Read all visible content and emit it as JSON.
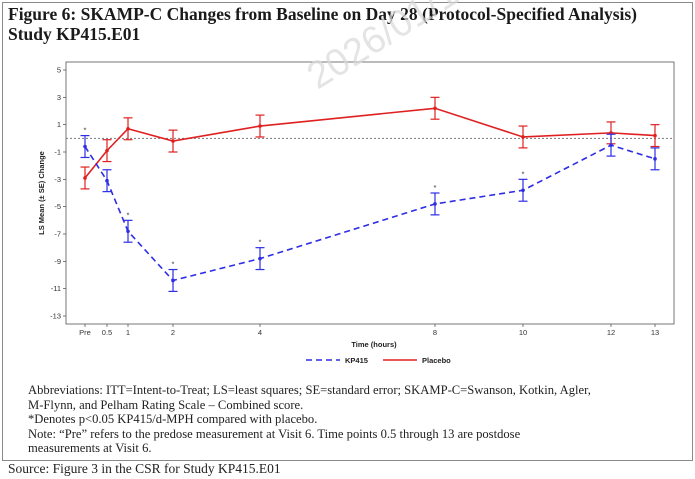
{
  "figure": {
    "title_line1": "Figure 6:  SKAMP-C Changes from Baseline on Day 28 (Protocol-Specified Analysis)",
    "title_line2": "Study KP415.E01"
  },
  "notes": {
    "abbrev_line1": "Abbreviations: ITT=Intent-to-Treat; LS=least squares; SE=standard error; SKAMP-C=Swanson, Kotkin, Agler,",
    "abbrev_line2": "M-Flynn, and Pelham Rating Scale – Combined score.",
    "asterisk_note": "*Denotes p<0.05 KP415/d-MPH compared with placebo.",
    "note_line1": "Note: “Pre” refers to the predose measurement at Visit 6. Time points 0.5 through 13 are postdose",
    "note_line2": "measurements at Visit 6."
  },
  "source": "Source: Figure 3 in the CSR for Study KP415.E01",
  "watermark": "2026/01/13",
  "colors": {
    "kp415": "#2d2de6",
    "placebo": "#e02020",
    "reference_line": "#777777"
  },
  "chart_data": {
    "type": "line",
    "xlabel": "Time (hours)",
    "ylabel": "LS Mean (± SE) Change",
    "ylim": [
      -13,
      5
    ],
    "yticks": [
      5,
      3,
      1,
      -1,
      -3,
      -5,
      -7,
      -9,
      -11,
      -13
    ],
    "xticks": [
      {
        "label": "Pre",
        "x": -0.5
      },
      {
        "label": "0.5",
        "x": 0.5
      },
      {
        "label": "1",
        "x": 1
      },
      {
        "label": "2",
        "x": 2
      },
      {
        "label": "4",
        "x": 4
      },
      {
        "label": "8",
        "x": 8
      },
      {
        "label": "10",
        "x": 10
      },
      {
        "label": "12",
        "x": 12
      },
      {
        "label": "13",
        "x": 13
      }
    ],
    "reference_y": 0,
    "legend_position": "bottom",
    "series": [
      {
        "name": "KP415",
        "style": "dashed",
        "points": [
          {
            "x": -0.5,
            "y": -0.6,
            "se": 0.8,
            "sig": true
          },
          {
            "x": 0.5,
            "y": -3.1,
            "se": 0.8,
            "sig": false
          },
          {
            "x": 1,
            "y": -6.8,
            "se": 0.8,
            "sig": true
          },
          {
            "x": 2,
            "y": -10.4,
            "se": 0.8,
            "sig": true
          },
          {
            "x": 4,
            "y": -8.8,
            "se": 0.8,
            "sig": true
          },
          {
            "x": 8,
            "y": -4.8,
            "se": 0.8,
            "sig": true
          },
          {
            "x": 10,
            "y": -3.8,
            "se": 0.8,
            "sig": true
          },
          {
            "x": 12,
            "y": -0.5,
            "se": 0.8,
            "sig": false
          },
          {
            "x": 13,
            "y": -1.5,
            "se": 0.8,
            "sig": false
          }
        ]
      },
      {
        "name": "Placebo",
        "style": "solid",
        "points": [
          {
            "x": -0.5,
            "y": -2.9,
            "se": 0.8
          },
          {
            "x": 0.5,
            "y": -0.9,
            "se": 0.8
          },
          {
            "x": 1,
            "y": 0.7,
            "se": 0.8
          },
          {
            "x": 2,
            "y": -0.2,
            "se": 0.8
          },
          {
            "x": 4,
            "y": 0.9,
            "se": 0.8
          },
          {
            "x": 8,
            "y": 2.2,
            "se": 0.8
          },
          {
            "x": 10,
            "y": 0.1,
            "se": 0.8
          },
          {
            "x": 12,
            "y": 0.4,
            "se": 0.8
          },
          {
            "x": 13,
            "y": 0.2,
            "se": 0.8
          }
        ]
      }
    ]
  }
}
